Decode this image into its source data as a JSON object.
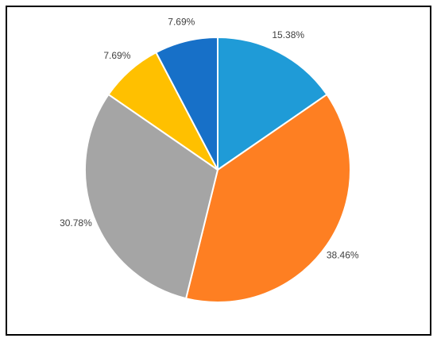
{
  "chart_data": {
    "type": "pie",
    "values": [
      15.38,
      38.46,
      30.78,
      7.69,
      7.69
    ],
    "value_labels": [
      "15.38%",
      "38.46%",
      "30.78%",
      "7.69%",
      "7.69%"
    ],
    "colors": [
      "#1f9bd7",
      "#fe7f22",
      "#a5a5a5",
      "#ffc000",
      "#1770c8"
    ]
  }
}
